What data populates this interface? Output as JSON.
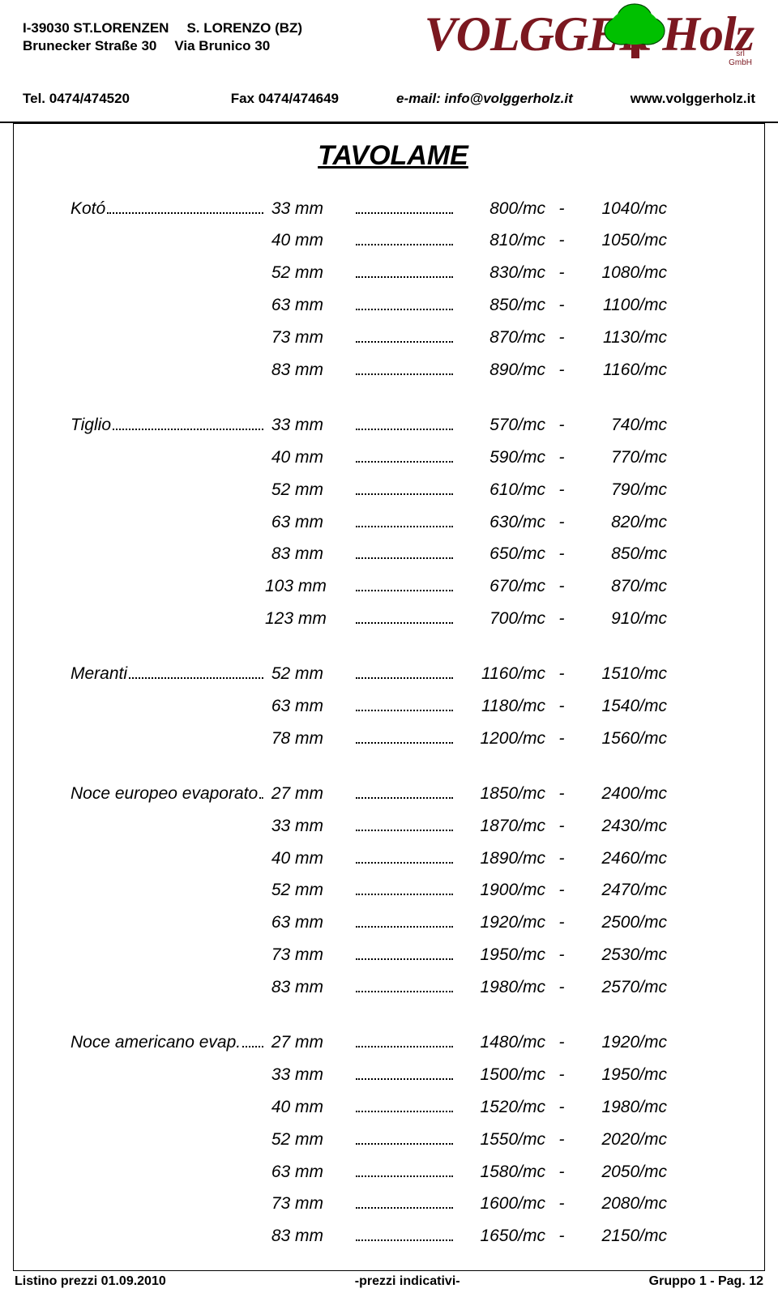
{
  "header": {
    "addr_line1_a": "I-39030 ST.LORENZEN",
    "addr_line1_b": "S. LORENZO (BZ)",
    "addr_line2_a": "Brunecker Straße 30",
    "addr_line2_b": "Via Brunico 30",
    "tel": "Tel. 0474/474520",
    "fax": "Fax 0474/474649",
    "brand": "VOLGGER Holz",
    "brand_sub1": "srl",
    "brand_sub2": "GmbH",
    "email_label": "e-mail: info@volggerholz.it",
    "website": "www.volggerholz.it"
  },
  "colors": {
    "brand": "#7b1820",
    "tree_fill": "#00c000",
    "tree_stroke": "#004800"
  },
  "title": "TAVOLAME",
  "blocks": [
    {
      "species": "Kotó",
      "rows": [
        {
          "thick": "33 mm",
          "p1": "800/mc",
          "p2": "1040/mc"
        },
        {
          "thick": "40 mm",
          "p1": "810/mc",
          "p2": "1050/mc"
        },
        {
          "thick": "52 mm",
          "p1": "830/mc",
          "p2": "1080/mc"
        },
        {
          "thick": "63 mm",
          "p1": "850/mc",
          "p2": "1100/mc"
        },
        {
          "thick": "73 mm",
          "p1": "870/mc",
          "p2": "1130/mc"
        },
        {
          "thick": "83 mm",
          "p1": "890/mc",
          "p2": "1160/mc"
        }
      ]
    },
    {
      "species": "Tiglio",
      "rows": [
        {
          "thick": "33 mm",
          "p1": "570/mc",
          "p2": "740/mc"
        },
        {
          "thick": "40 mm",
          "p1": "590/mc",
          "p2": "770/mc"
        },
        {
          "thick": "52 mm",
          "p1": "610/mc",
          "p2": "790/mc"
        },
        {
          "thick": "63 mm",
          "p1": "630/mc",
          "p2": "820/mc"
        },
        {
          "thick": "83 mm",
          "p1": "650/mc",
          "p2": "850/mc"
        },
        {
          "thick": "103 mm",
          "p1": "670/mc",
          "p2": "870/mc"
        },
        {
          "thick": "123 mm",
          "p1": "700/mc",
          "p2": "910/mc"
        }
      ]
    },
    {
      "species": "Meranti",
      "rows": [
        {
          "thick": "52 mm",
          "p1": "1160/mc",
          "p2": "1510/mc"
        },
        {
          "thick": "63 mm",
          "p1": "1180/mc",
          "p2": "1540/mc"
        },
        {
          "thick": "78 mm",
          "p1": "1200/mc",
          "p2": "1560/mc"
        }
      ]
    },
    {
      "species": "Noce europeo evaporato",
      "dots_after": "...",
      "rows": [
        {
          "thick": "27 mm",
          "p1": "1850/mc",
          "p2": "2400/mc"
        },
        {
          "thick": "33 mm",
          "p1": "1870/mc",
          "p2": "2430/mc"
        },
        {
          "thick": "40 mm",
          "p1": "1890/mc",
          "p2": "2460/mc"
        },
        {
          "thick": "52 mm",
          "p1": "1900/mc",
          "p2": "2470/mc"
        },
        {
          "thick": "63 mm",
          "p1": "1920/mc",
          "p2": "2500/mc"
        },
        {
          "thick": "73 mm",
          "p1": "1950/mc",
          "p2": "2530/mc"
        },
        {
          "thick": "83 mm",
          "p1": "1980/mc",
          "p2": "2570/mc"
        }
      ]
    },
    {
      "species": "Noce americano evap.",
      "rows": [
        {
          "thick": "27 mm",
          "p1": "1480/mc",
          "p2": "1920/mc"
        },
        {
          "thick": "33 mm",
          "p1": "1500/mc",
          "p2": "1950/mc"
        },
        {
          "thick": "40 mm",
          "p1": "1520/mc",
          "p2": "1980/mc"
        },
        {
          "thick": "52 mm",
          "p1": "1550/mc",
          "p2": "2020/mc"
        },
        {
          "thick": "63 mm",
          "p1": "1580/mc",
          "p2": "2050/mc"
        },
        {
          "thick": "73 mm",
          "p1": "1600/mc",
          "p2": "2080/mc"
        },
        {
          "thick": "83 mm",
          "p1": "1650/mc",
          "p2": "2150/mc"
        }
      ]
    }
  ],
  "footer": {
    "left": "Listino prezzi 01.09.2010",
    "center": "-prezzi indicativi-",
    "right": "Gruppo 1 - Pag. 12"
  }
}
